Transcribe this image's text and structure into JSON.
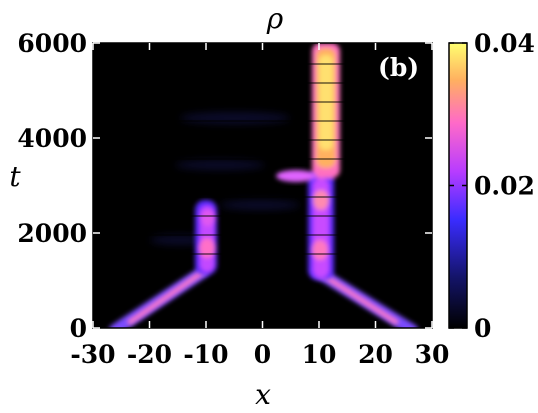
{
  "chart_data": {
    "type": "heatmap",
    "title": "ρ",
    "panel_label": "(b)",
    "xlabel": "x",
    "ylabel": "t",
    "xlim": [
      -30,
      30
    ],
    "ylim": [
      0,
      6000
    ],
    "x_ticks": [
      -30,
      -20,
      -10,
      0,
      10,
      20,
      30
    ],
    "y_ticks": [
      0,
      2000,
      4000,
      6000
    ],
    "colorbar": {
      "range": [
        0,
        0.04
      ],
      "ticks": [
        "0",
        "0.02",
        "0.04"
      ],
      "colormap": [
        "#000000",
        "#1a1aff",
        "#c33cff",
        "#ff6ad0",
        "#ffb060",
        "#ffff60"
      ]
    },
    "features": [
      {
        "name": "left-branch",
        "x_start": -9,
        "x_end": -26,
        "t_start": 900,
        "t_end": 0
      },
      {
        "name": "right-branch",
        "x_start": 9,
        "x_end": 26,
        "t_start": 900,
        "t_end": 0
      },
      {
        "name": "left-soliton",
        "x": -9,
        "t_start": 900,
        "t_end": 2600
      },
      {
        "name": "right-soliton",
        "x": 10,
        "t_start": 900,
        "t_end": 6000
      },
      {
        "name": "emission",
        "x": 5,
        "t": 3200
      }
    ]
  }
}
